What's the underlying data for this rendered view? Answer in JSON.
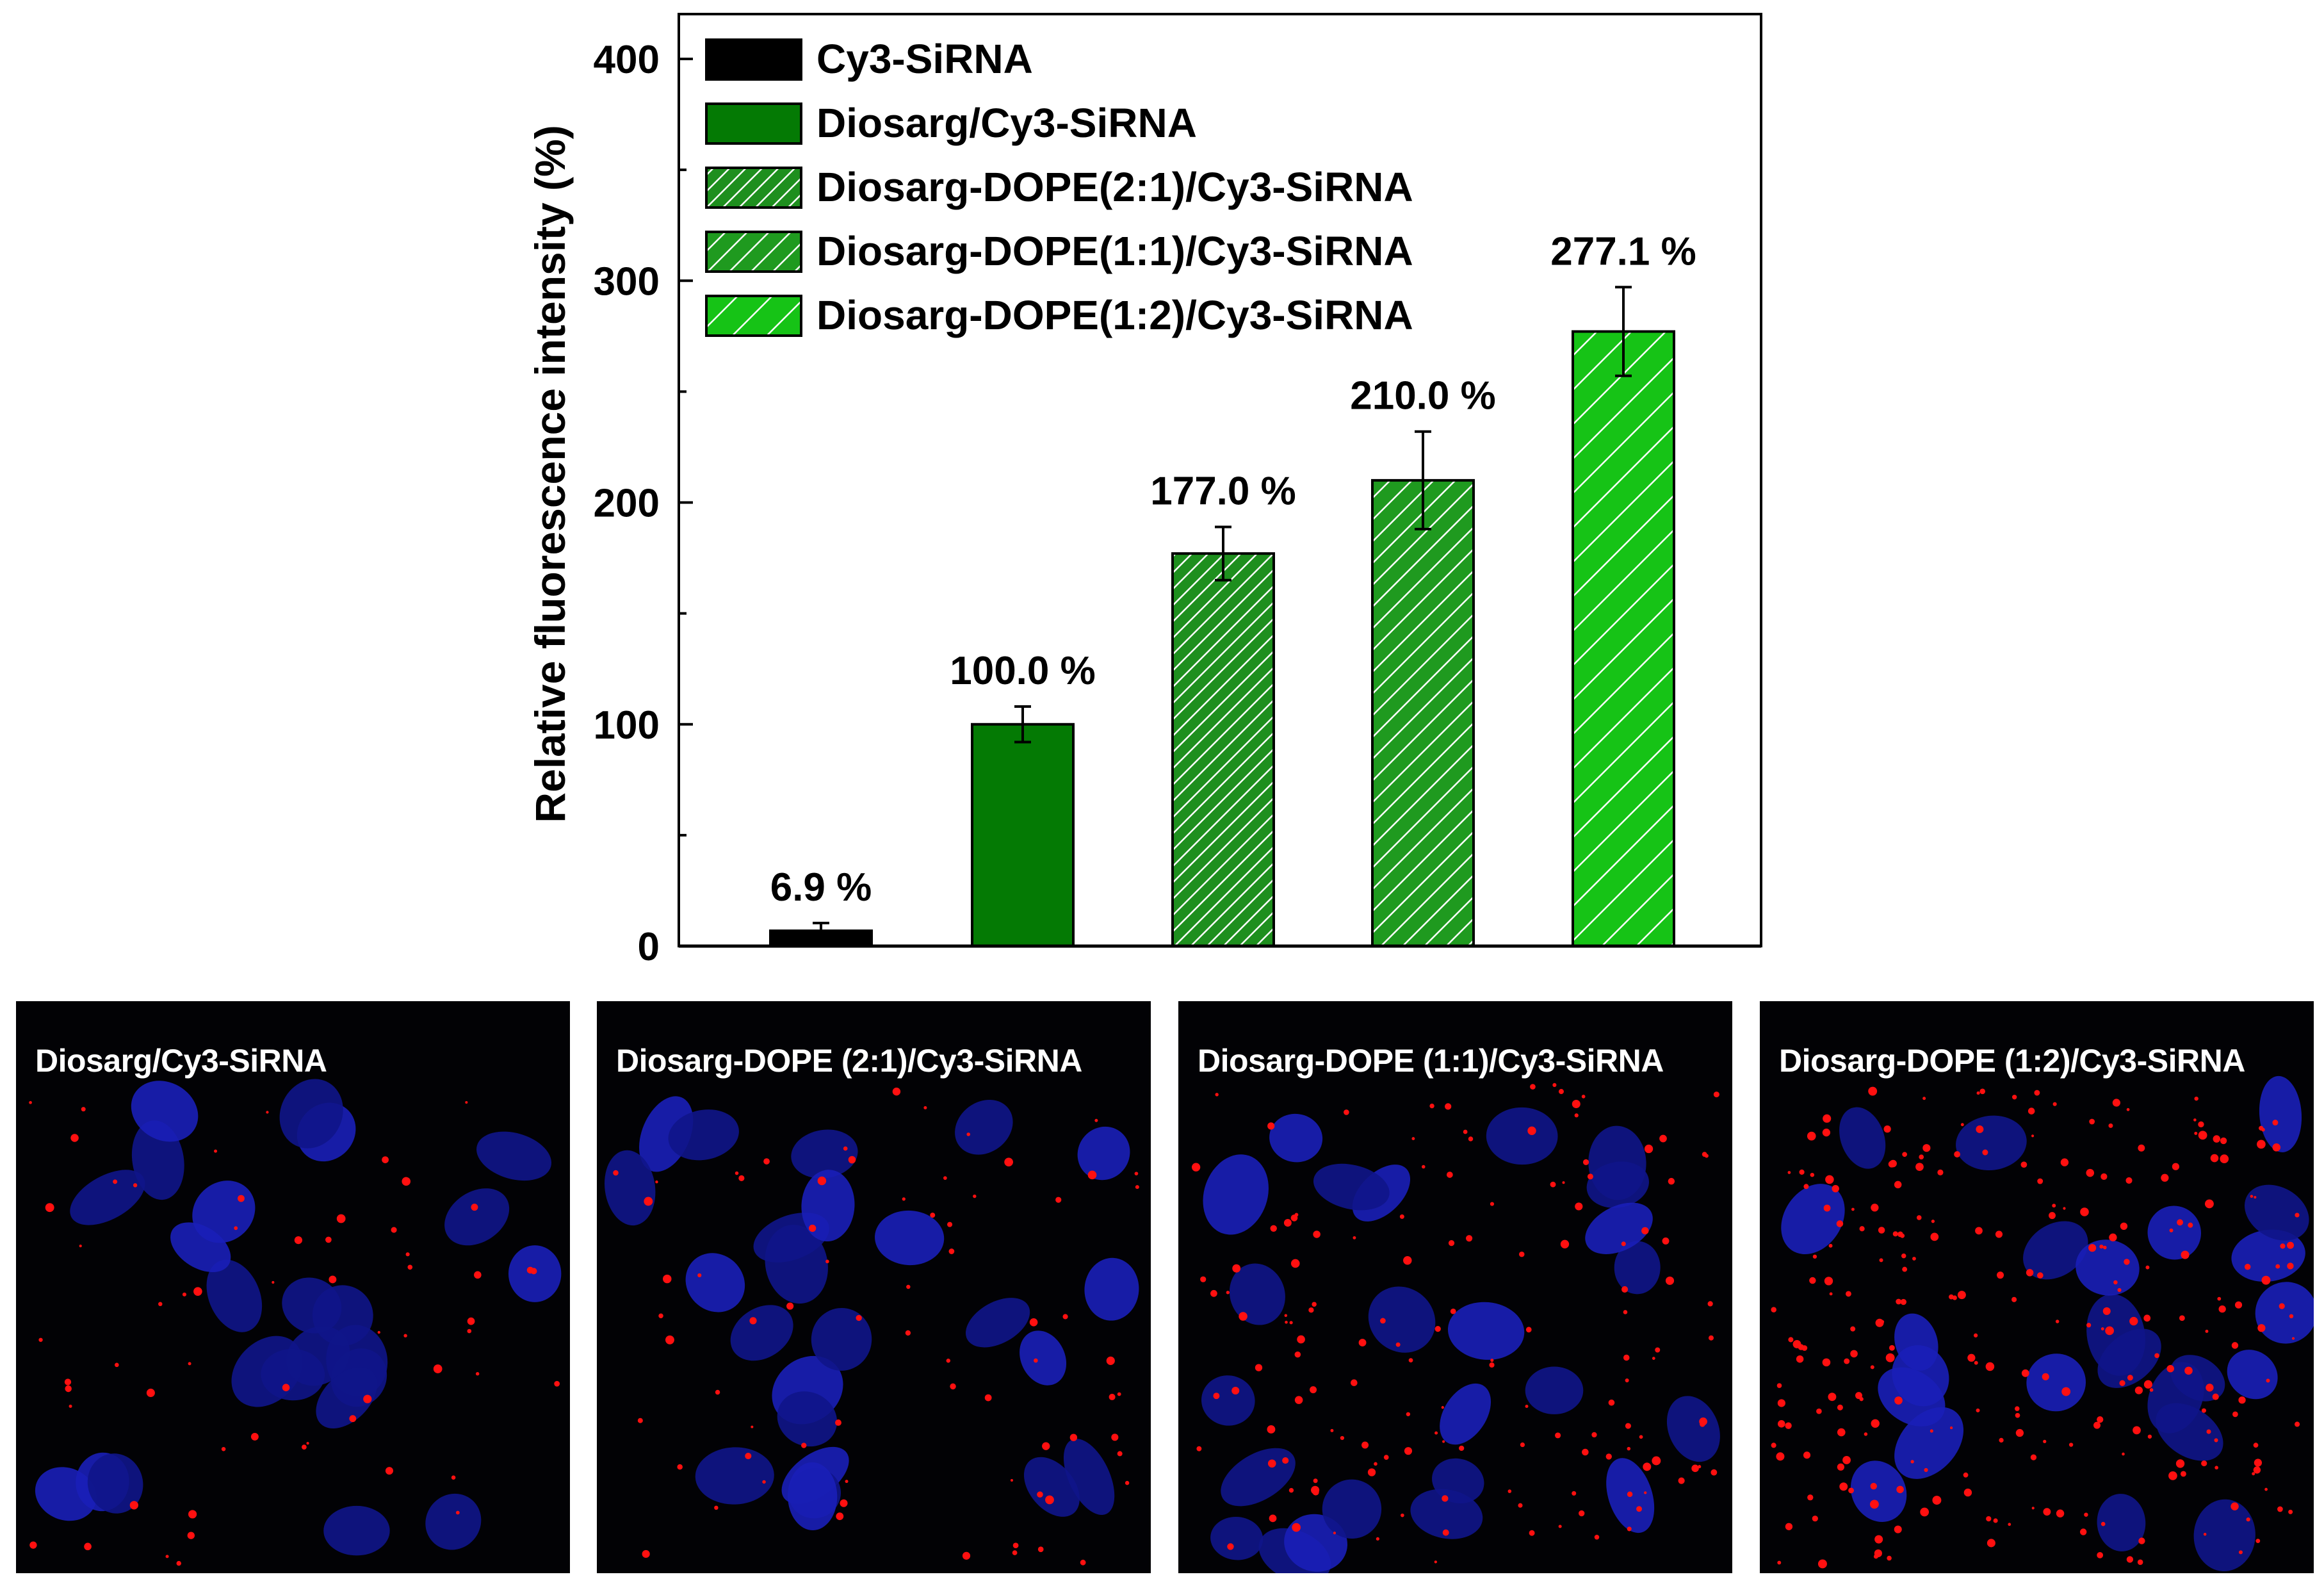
{
  "chart_data": {
    "type": "bar",
    "ylabel": "Relative fluorescence intensity (%)",
    "xlabel": "",
    "ylim": [
      0,
      420
    ],
    "yticks": [
      0,
      100,
      200,
      300,
      400
    ],
    "grid": false,
    "legend_position": "top-left",
    "categories": [
      "Cy3-SiRNA",
      "Diosarg/Cy3-SiRNA",
      "Diosarg-DOPE(2:1)/Cy3-SiRNA",
      "Diosarg-DOPE(1:1)/Cy3-SiRNA",
      "Diosarg-DOPE(1:2)/Cy3-SiRNA"
    ],
    "values": [
      6.9,
      100.0,
      177.0,
      210.0,
      277.1
    ],
    "errors": [
      3.5,
      8,
      12,
      22,
      20
    ],
    "data_labels": [
      "6.9 %",
      "100.0 %",
      "177.0 %",
      "210.0 %",
      "277.1 %"
    ],
    "colors": [
      "#000000",
      "#047a04",
      "#1e8f1e",
      "#1f9a1f",
      "#16c316"
    ],
    "patterns": [
      "solid",
      "solid",
      "dense-hatch",
      "medium-hatch",
      "wide-hatch"
    ]
  },
  "micrographs": [
    {
      "label": "Diosarg/Cy3-SiRNA"
    },
    {
      "label": "Diosarg-DOPE (2:1)/Cy3-SiRNA"
    },
    {
      "label": "Diosarg-DOPE (1:1)/Cy3-SiRNA"
    },
    {
      "label": "Diosarg-DOPE (1:2)/Cy3-SiRNA"
    }
  ]
}
